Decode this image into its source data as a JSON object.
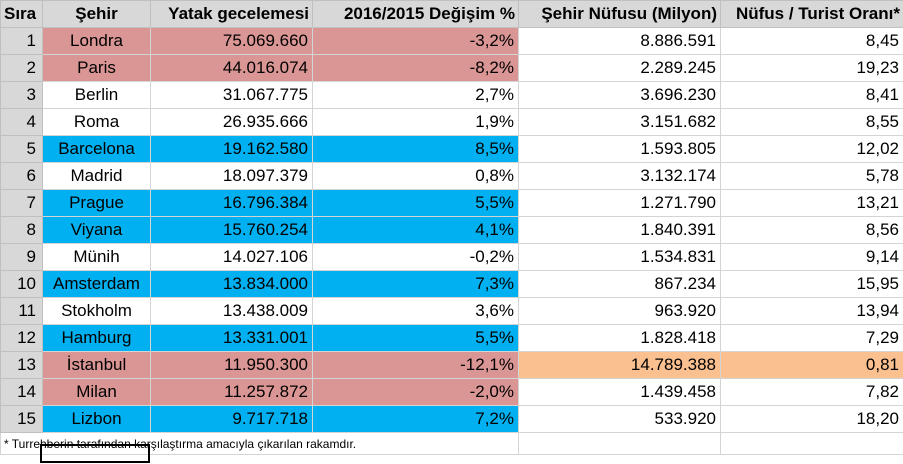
{
  "headers": {
    "rank": "Sıra",
    "city": "Şehir",
    "nights": "Yatak gecelemesi",
    "change": "2016/2015 Değişim %",
    "population": "Şehir Nüfusu (Milyon)",
    "ratio": "Nüfus / Turist Oranı*"
  },
  "rows": [
    {
      "rank": "1",
      "city": "Londra",
      "nights": "75.069.660",
      "change": "-3,2%",
      "population": "8.886.591",
      "ratio": "8,45",
      "highlight": "red"
    },
    {
      "rank": "2",
      "city": "Paris",
      "nights": "44.016.074",
      "change": "-8,2%",
      "population": "2.289.245",
      "ratio": "19,23",
      "highlight": "red"
    },
    {
      "rank": "3",
      "city": "Berlin",
      "nights": "31.067.775",
      "change": "2,7%",
      "population": "3.696.230",
      "ratio": "8,41",
      "highlight": "none"
    },
    {
      "rank": "4",
      "city": "Roma",
      "nights": "26.935.666",
      "change": "1,9%",
      "population": "3.151.682",
      "ratio": "8,55",
      "highlight": "none"
    },
    {
      "rank": "5",
      "city": "Barcelona",
      "nights": "19.162.580",
      "change": "8,5%",
      "population": "1.593.805",
      "ratio": "12,02",
      "highlight": "blue"
    },
    {
      "rank": "6",
      "city": "Madrid",
      "nights": "18.097.379",
      "change": "0,8%",
      "population": "3.132.174",
      "ratio": "5,78",
      "highlight": "none"
    },
    {
      "rank": "7",
      "city": "Prague",
      "nights": "16.796.384",
      "change": "5,5%",
      "population": "1.271.790",
      "ratio": "13,21",
      "highlight": "blue"
    },
    {
      "rank": "8",
      "city": "Viyana",
      "nights": "15.760.254",
      "change": "4,1%",
      "population": "1.840.391",
      "ratio": "8,56",
      "highlight": "blue"
    },
    {
      "rank": "9",
      "city": "Münih",
      "nights": "14.027.106",
      "change": "-0,2%",
      "population": "1.534.831",
      "ratio": "9,14",
      "highlight": "none"
    },
    {
      "rank": "10",
      "city": "Amsterdam",
      "nights": "13.834.000",
      "change": "7,3%",
      "population": "867.234",
      "ratio": "15,95",
      "highlight": "blue"
    },
    {
      "rank": "11",
      "city": "Stokholm",
      "nights": "13.438.009",
      "change": "3,6%",
      "population": "963.920",
      "ratio": "13,94",
      "highlight": "none"
    },
    {
      "rank": "12",
      "city": "Hamburg",
      "nights": "13.331.001",
      "change": "5,5%",
      "population": "1.828.418",
      "ratio": "7,29",
      "highlight": "blue"
    },
    {
      "rank": "13",
      "city": "İstanbul",
      "nights": "11.950.300",
      "change": "-12,1%",
      "population": "14.789.388",
      "ratio": "0,81",
      "highlight": "red-orange"
    },
    {
      "rank": "14",
      "city": "Milan",
      "nights": "11.257.872",
      "change": "-2,0%",
      "population": "1.439.458",
      "ratio": "7,82",
      "highlight": "red"
    },
    {
      "rank": "15",
      "city": "Lizbon",
      "nights": "9.717.718",
      "change": "7,2%",
      "population": "533.920",
      "ratio": "18,20",
      "highlight": "blue"
    }
  ],
  "footnote": "* Turrehberin tarafından karşılaştırma amacıyla çıkarılan rakamdır.",
  "colors": {
    "header_bg": "#d8d8d8",
    "highlight_red": "#da9694",
    "highlight_blue": "#00b0f0",
    "highlight_orange": "#fac090"
  }
}
